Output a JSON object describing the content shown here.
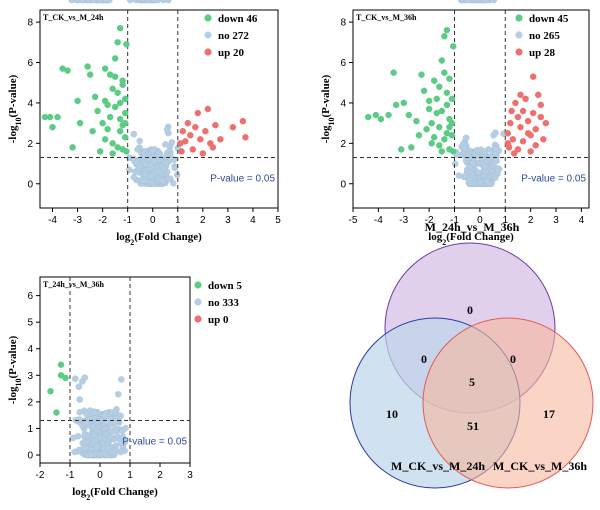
{
  "colors": {
    "down": "#5ccb85",
    "no": "#b5cee4",
    "up": "#ec7070",
    "pval_text": "#2e4a9e",
    "venn_a_fill": "#d9c4e6",
    "venn_b_fill": "#bcd6ea",
    "venn_c_fill": "#f7b79e",
    "venn_a_stroke": "#6a3fa0",
    "venn_b_stroke": "#2a3a9e",
    "venn_c_stroke": "#e05a5a"
  },
  "chart_data": [
    {
      "type": "scatter",
      "title": "T_CK_vs_M_24h",
      "xlabel": "log2(Fold Change)",
      "ylabel": "-log10(P-value)",
      "xlim": [
        -4.5,
        5
      ],
      "ylim": [
        -1.2,
        8.6
      ],
      "xticks": [
        -4,
        -3,
        -2,
        -1,
        0,
        1,
        2,
        3,
        4,
        5
      ],
      "yticks": [
        0,
        2,
        4,
        6,
        8
      ],
      "vlines": [
        -1,
        1
      ],
      "hline": 1.3,
      "pvalue_label": "P-value = 0.05",
      "legend": [
        {
          "key": "down",
          "label": "down 46"
        },
        {
          "key": "no",
          "label": "no 272"
        },
        {
          "key": "up",
          "label": "up 20"
        }
      ],
      "series": [
        {
          "key": "down",
          "points": [
            [
              -4.3,
              3.3
            ],
            [
              -4.1,
              3.3
            ],
            [
              -4.0,
              2.8
            ],
            [
              -3.8,
              3.3
            ],
            [
              -3.6,
              5.7
            ],
            [
              -3.4,
              5.6
            ],
            [
              -3.2,
              1.8
            ],
            [
              -3.0,
              4.1
            ],
            [
              -2.9,
              3.0
            ],
            [
              -2.6,
              5.8
            ],
            [
              -2.5,
              5.4
            ],
            [
              -2.3,
              4.3
            ],
            [
              -2.2,
              3.6
            ],
            [
              -2.1,
              1.6
            ],
            [
              -1.9,
              4.1
            ],
            [
              -1.9,
              5.7
            ],
            [
              -1.8,
              2.7
            ],
            [
              -1.7,
              3.3
            ],
            [
              -1.6,
              2.0
            ],
            [
              -1.5,
              3.8
            ],
            [
              -1.5,
              6.2
            ],
            [
              -1.4,
              7.0
            ],
            [
              -1.4,
              4.5
            ],
            [
              -1.3,
              3.2
            ],
            [
              -1.3,
              7.7
            ],
            [
              -1.2,
              5.1
            ],
            [
              -1.2,
              4.9
            ],
            [
              -1.1,
              3.5
            ],
            [
              -1.1,
              2.3
            ],
            [
              -1.05,
              6.9
            ],
            [
              -1.1,
              4.2
            ],
            [
              -1.3,
              2.6
            ],
            [
              -1.6,
              4.7
            ],
            [
              -2.0,
              3.0
            ],
            [
              -1.4,
              1.8
            ],
            [
              -1.2,
              2.9
            ],
            [
              -1.8,
              3.9
            ],
            [
              -1.5,
              5.3
            ],
            [
              -1.2,
              1.7
            ],
            [
              -1.1,
              3.0
            ],
            [
              -1.7,
              5.4
            ],
            [
              -1.9,
              2.2
            ],
            [
              -1.3,
              4.0
            ],
            [
              -1.05,
              1.6
            ],
            [
              -2.4,
              2.6
            ],
            [
              -1.6,
              1.5
            ]
          ]
        },
        {
          "key": "up",
          "points": [
            [
              1.1,
              2.0
            ],
            [
              1.15,
              1.6
            ],
            [
              1.3,
              2.1
            ],
            [
              1.4,
              3.0
            ],
            [
              1.5,
              2.4
            ],
            [
              1.6,
              1.7
            ],
            [
              1.7,
              2.8
            ],
            [
              1.8,
              3.5
            ],
            [
              1.9,
              2.2
            ],
            [
              2.0,
              1.5
            ],
            [
              2.1,
              2.6
            ],
            [
              2.2,
              3.7
            ],
            [
              2.3,
              2.0
            ],
            [
              2.4,
              1.8
            ],
            [
              2.5,
              2.9
            ],
            [
              2.7,
              2.2
            ],
            [
              3.2,
              2.8
            ],
            [
              3.6,
              3.1
            ],
            [
              3.7,
              2.3
            ],
            [
              1.2,
              2.6
            ]
          ]
        }
      ]
    },
    {
      "type": "scatter",
      "title": "T_CK_vs_M_36h",
      "xlabel": "log2(Fold Change)",
      "ylabel": "-log10(P-value)",
      "xlim": [
        -5,
        4.3
      ],
      "ylim": [
        -1.2,
        8.6
      ],
      "xticks": [
        -5,
        -4,
        -3,
        -2,
        -1,
        0,
        1,
        2,
        3,
        4
      ],
      "yticks": [
        0,
        2,
        4,
        6,
        8
      ],
      "vlines": [
        -1,
        1
      ],
      "hline": 1.3,
      "pvalue_label": "P-value = 0.05",
      "legend": [
        {
          "key": "down",
          "label": "down 45"
        },
        {
          "key": "no",
          "label": "no 265"
        },
        {
          "key": "up",
          "label": "up 28"
        }
      ],
      "series": [
        {
          "key": "down",
          "points": [
            [
              -4.4,
              3.3
            ],
            [
              -4.1,
              3.4
            ],
            [
              -3.9,
              3.2
            ],
            [
              -3.6,
              3.4
            ],
            [
              -3.4,
              5.5
            ],
            [
              -3.3,
              3.9
            ],
            [
              -3.0,
              4.0
            ],
            [
              -2.7,
              1.8
            ],
            [
              -2.5,
              3.1
            ],
            [
              -2.3,
              5.4
            ],
            [
              -2.2,
              4.6
            ],
            [
              -2.0,
              3.7
            ],
            [
              -1.9,
              2.0
            ],
            [
              -1.8,
              5.1
            ],
            [
              -1.7,
              4.2
            ],
            [
              -1.6,
              2.8
            ],
            [
              -1.5,
              3.6
            ],
            [
              -1.5,
              6.1
            ],
            [
              -1.4,
              7.3
            ],
            [
              -1.3,
              4.5
            ],
            [
              -1.3,
              7.6
            ],
            [
              -1.2,
              5.2
            ],
            [
              -1.2,
              3.2
            ],
            [
              -1.1,
              2.4
            ],
            [
              -1.1,
              4.2
            ],
            [
              -1.05,
              6.8
            ],
            [
              -1.4,
              2.2
            ],
            [
              -1.6,
              4.8
            ],
            [
              -2.1,
              2.7
            ],
            [
              -1.2,
              1.7
            ],
            [
              -1.7,
              3.5
            ],
            [
              -1.9,
              3.0
            ],
            [
              -1.3,
              3.9
            ],
            [
              -2.4,
              2.4
            ],
            [
              -1.5,
              1.6
            ],
            [
              -1.1,
              3.0
            ],
            [
              -2.8,
              3.4
            ],
            [
              -1.8,
              2.3
            ],
            [
              -1.4,
              5.5
            ],
            [
              -1.2,
              2.8
            ],
            [
              -1.6,
              1.9
            ],
            [
              -2.0,
              4.1
            ],
            [
              -1.05,
              1.6
            ],
            [
              -1.3,
              2.5
            ],
            [
              -3.1,
              1.7
            ]
          ]
        },
        {
          "key": "up",
          "points": [
            [
              1.1,
              2.5
            ],
            [
              1.15,
              1.8
            ],
            [
              1.2,
              3.0
            ],
            [
              1.3,
              2.2
            ],
            [
              1.4,
              4.0
            ],
            [
              1.5,
              3.3
            ],
            [
              1.5,
              1.7
            ],
            [
              1.6,
              2.8
            ],
            [
              1.7,
              3.6
            ],
            [
              1.7,
              2.1
            ],
            [
              1.8,
              4.2
            ],
            [
              1.9,
              3.1
            ],
            [
              2.0,
              2.4
            ],
            [
              2.0,
              1.6
            ],
            [
              2.1,
              3.5
            ],
            [
              2.2,
              2.7
            ],
            [
              2.3,
              4.4
            ],
            [
              2.4,
              3.3
            ],
            [
              2.5,
              2.2
            ],
            [
              2.6,
              3.0
            ],
            [
              2.1,
              5.3
            ],
            [
              1.25,
              3.6
            ],
            [
              1.35,
              1.5
            ],
            [
              1.6,
              4.4
            ],
            [
              1.9,
              2.5
            ],
            [
              2.2,
              1.9
            ],
            [
              1.1,
              2.0
            ],
            [
              2.4,
              3.9
            ]
          ]
        }
      ]
    },
    {
      "type": "scatter",
      "title": "T_24h_vs_M_36h",
      "xlabel": "log2(Fold Change)",
      "ylabel": "-log10(P-value)",
      "xlim": [
        -2,
        3
      ],
      "ylim": [
        -0.3,
        6.7
      ],
      "xticks": [
        -2,
        -1,
        0,
        1,
        2,
        3
      ],
      "yticks": [
        0,
        1,
        2,
        3,
        4,
        5,
        6
      ],
      "vlines": [
        -1,
        1
      ],
      "hline": 1.3,
      "pvalue_label": "P-value = 0.05",
      "legend": [
        {
          "key": "down",
          "label": "down 5"
        },
        {
          "key": "no",
          "label": "no 333"
        },
        {
          "key": "up",
          "label": "up 0"
        }
      ],
      "series": [
        {
          "key": "down",
          "points": [
            [
              -1.65,
              2.4
            ],
            [
              -1.45,
              1.6
            ],
            [
              -1.3,
              3.4
            ],
            [
              -1.15,
              2.9
            ],
            [
              -1.3,
              3.0
            ]
          ]
        },
        {
          "key": "up",
          "points": []
        }
      ]
    },
    {
      "type": "venn",
      "sets": [
        "M_24h_vs_M_36h",
        "M_CK_vs_M_24h",
        "M_CK_vs_M_36h"
      ],
      "regions": {
        "a_only": 0,
        "b_only": 10,
        "c_only": 17,
        "ab": 0,
        "ac": 0,
        "bc": 51,
        "abc": 5
      }
    }
  ]
}
